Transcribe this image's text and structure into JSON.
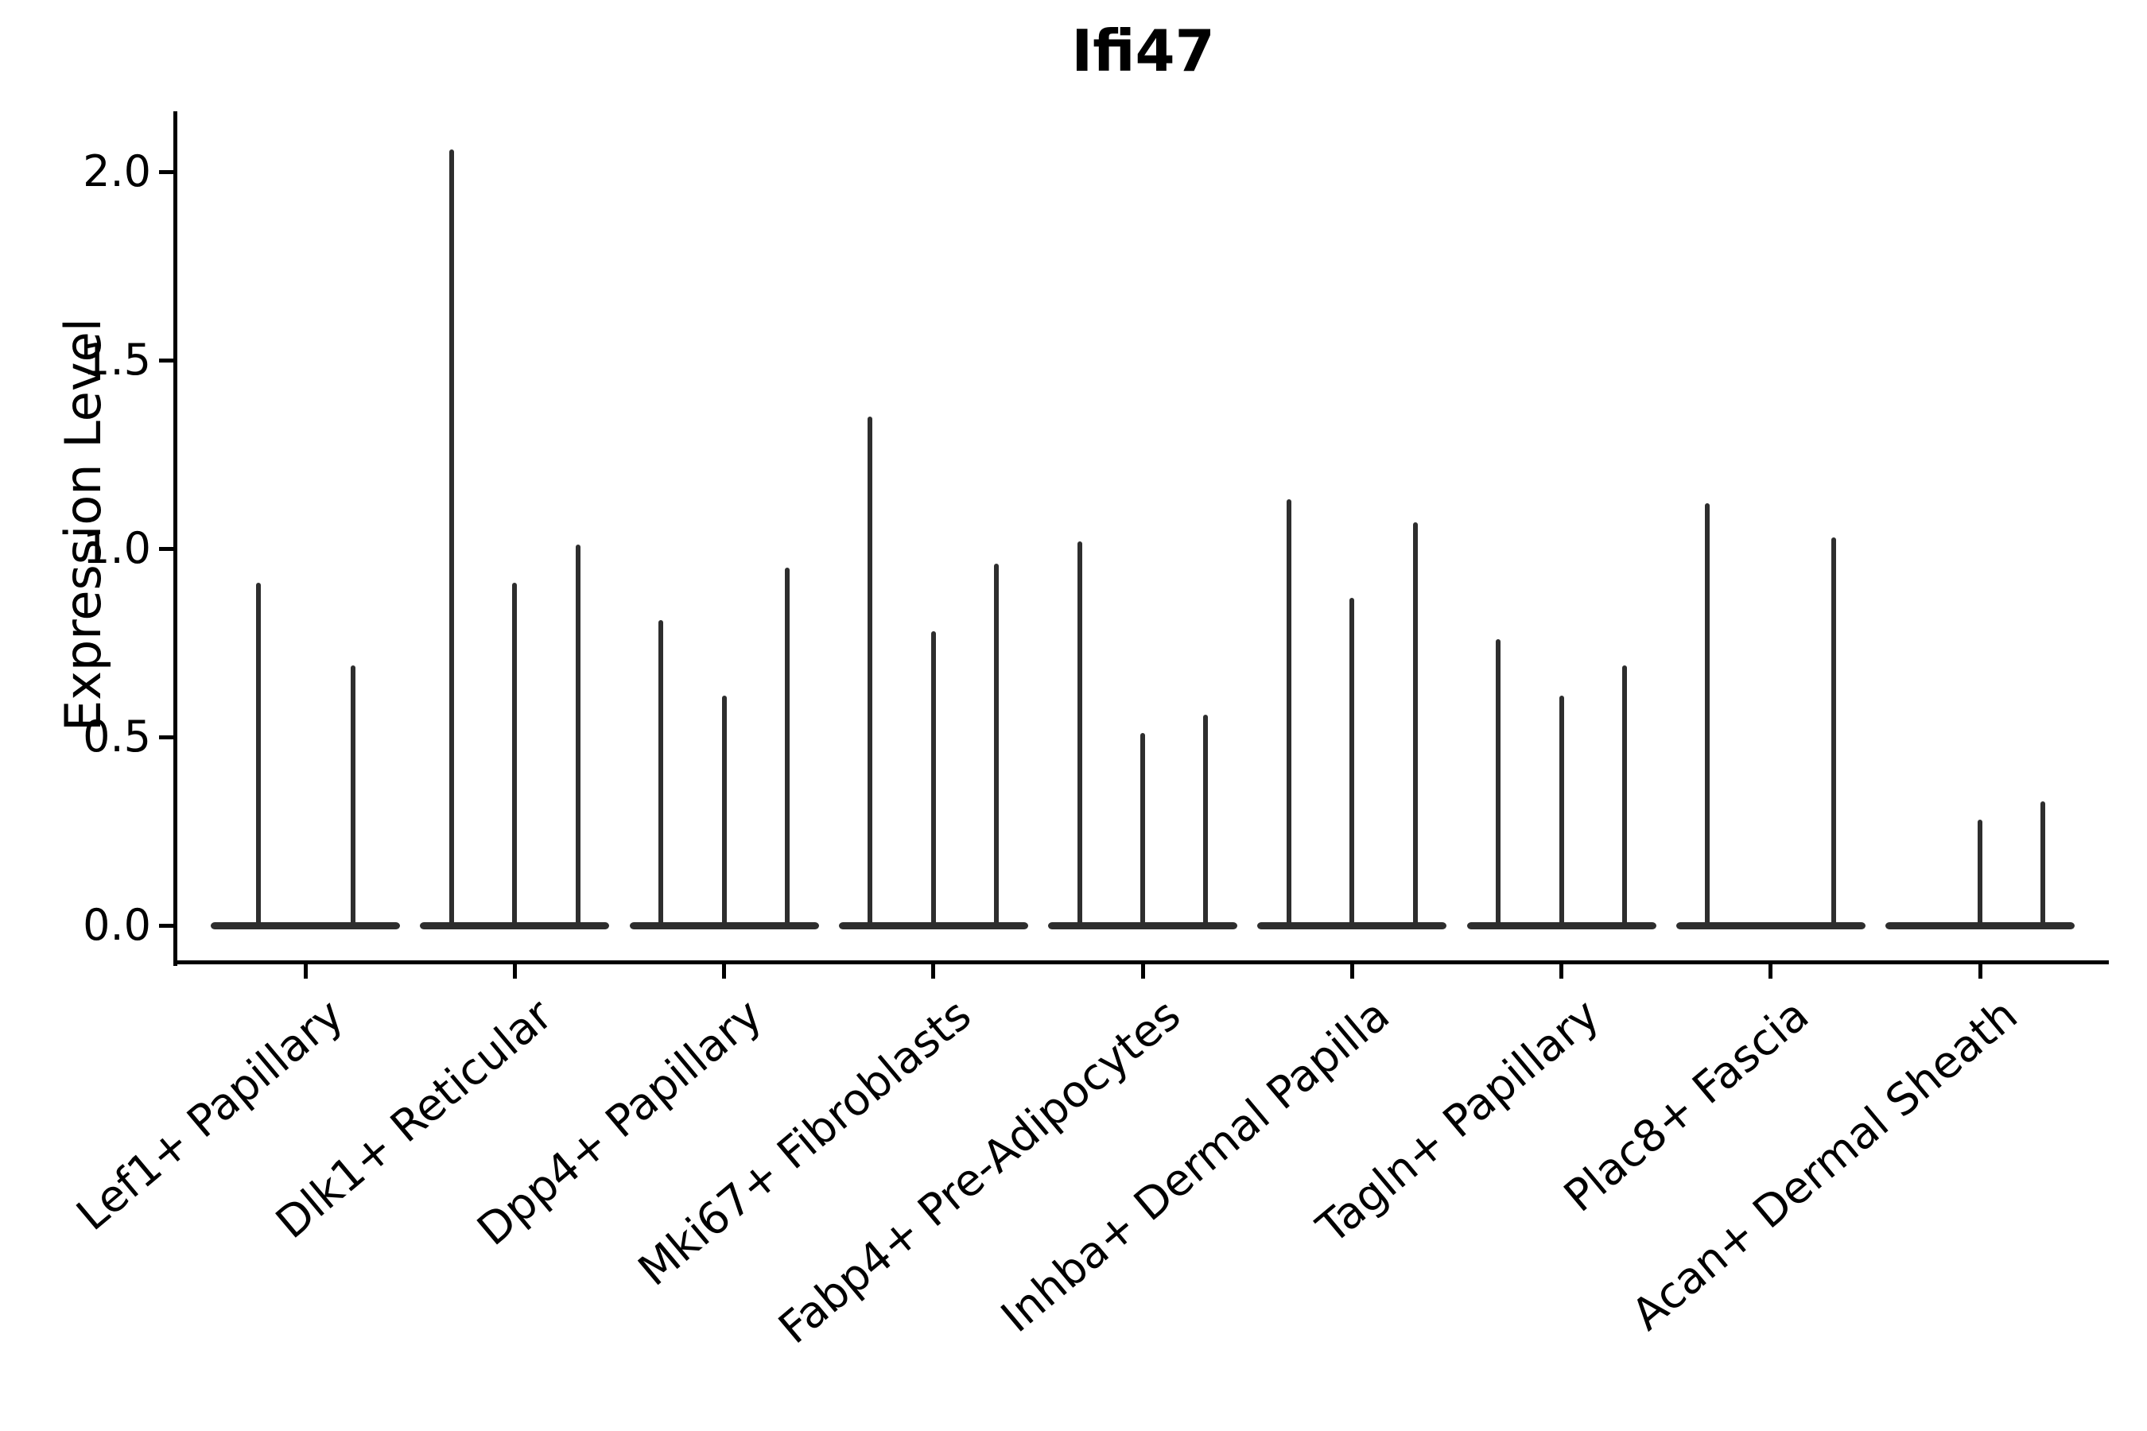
{
  "title": "Ifi47",
  "ylabel": "Expression Level",
  "chart_data": {
    "type": "violin",
    "title": "Ifi47",
    "xlabel": "",
    "ylabel": "Expression Level",
    "ylim": [
      0,
      2.2
    ],
    "ytick_values": [
      0.0,
      0.5,
      1.0,
      1.5,
      2.0
    ],
    "ytick_labels": [
      "0.0",
      "0.5",
      "1.0",
      "1.5",
      "2.0"
    ],
    "grid": false,
    "legend_position": "none",
    "violin_color": "#2e2e2e",
    "spine_color": "#000000",
    "categories": [
      "Lef1+ Papillary",
      "Dlk1+ Reticular",
      "Dpp4+ Papillary",
      "Mki67+ Fibroblasts",
      "Fabp4+ Pre-Adipocytes",
      "Inhba+ Dermal Papilla",
      "Tagln+ Papillary",
      "Plac8+ Fascia",
      "Acan+ Dermal Sheath"
    ],
    "groups": [
      {
        "label": "Lef1+ Papillary",
        "violin_max_values": [
          0.91,
          0.69
        ]
      },
      {
        "label": "Dlk1+ Reticular",
        "violin_max_values": [
          2.06,
          0.91,
          1.01
        ]
      },
      {
        "label": "Dpp4+ Papillary",
        "violin_max_values": [
          0.81,
          0.61,
          0.95
        ]
      },
      {
        "label": "Mki67+ Fibroblasts",
        "violin_max_values": [
          1.35,
          0.78,
          0.96
        ]
      },
      {
        "label": "Fabp4+ Pre-Adipocytes",
        "violin_max_values": [
          1.02,
          0.51,
          0.56
        ]
      },
      {
        "label": "Inhba+ Dermal Papilla",
        "violin_max_values": [
          1.13,
          0.87,
          1.07
        ]
      },
      {
        "label": "Tagln+ Papillary",
        "violin_max_values": [
          0.76,
          0.61,
          0.69
        ]
      },
      {
        "label": "Plac8+ Fascia",
        "violin_max_values": [
          1.12,
          0.0,
          1.03
        ]
      },
      {
        "label": "Acan+ Dermal Sheath",
        "violin_max_values": [
          0.0,
          0.28,
          0.33
        ]
      }
    ]
  }
}
